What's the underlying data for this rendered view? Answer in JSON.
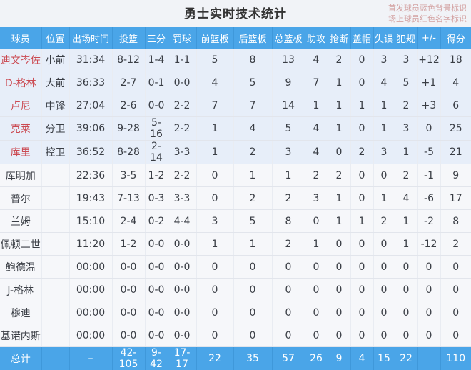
{
  "page": {
    "title": "勇士实时技术统计",
    "note_line1": "首发球员蓝色背景标识",
    "note_line2": "场上球员红色名字标识"
  },
  "colors": {
    "header_bg": "#4aa5e8",
    "total_bg": "#4aa5e8",
    "starter_row_bg": "#e7eef9",
    "bench_row_bg": "#f6f7fa",
    "on_court_name": "#cb4a52",
    "note_text": "#d4a3a3"
  },
  "table": {
    "columns": [
      "球员",
      "位置",
      "出场时间",
      "投篮",
      "三分",
      "罚球",
      "前篮板",
      "后篮板",
      "总篮板",
      "助攻",
      "抢断",
      "盖帽",
      "失误",
      "犯规",
      "+/-",
      "得分"
    ],
    "rows": [
      {
        "name": "迪文岑佐",
        "starter": true,
        "on_court": true,
        "cells": [
          "小前",
          "31:34",
          "8-12",
          "1-4",
          "1-1",
          "5",
          "8",
          "13",
          "4",
          "2",
          "0",
          "3",
          "3",
          "+12",
          "18"
        ]
      },
      {
        "name": "D-格林",
        "starter": true,
        "on_court": true,
        "cells": [
          "大前",
          "36:33",
          "2-7",
          "0-1",
          "0-0",
          "4",
          "5",
          "9",
          "7",
          "1",
          "0",
          "4",
          "5",
          "+1",
          "4"
        ]
      },
      {
        "name": "卢尼",
        "starter": true,
        "on_court": true,
        "cells": [
          "中锋",
          "27:04",
          "2-6",
          "0-0",
          "2-2",
          "7",
          "7",
          "14",
          "1",
          "1",
          "1",
          "1",
          "2",
          "+3",
          "6"
        ]
      },
      {
        "name": "克莱",
        "starter": true,
        "on_court": true,
        "cells": [
          "分卫",
          "39:06",
          "9-28",
          "5-16",
          "2-2",
          "1",
          "4",
          "5",
          "4",
          "1",
          "0",
          "1",
          "3",
          "0",
          "25"
        ]
      },
      {
        "name": "库里",
        "starter": true,
        "on_court": true,
        "cells": [
          "控卫",
          "36:52",
          "8-28",
          "2-14",
          "3-3",
          "1",
          "2",
          "3",
          "4",
          "0",
          "2",
          "3",
          "1",
          "-5",
          "21"
        ]
      },
      {
        "name": "库明加",
        "starter": false,
        "on_court": false,
        "cells": [
          "",
          "22:36",
          "3-5",
          "1-2",
          "2-2",
          "0",
          "1",
          "1",
          "2",
          "2",
          "0",
          "0",
          "2",
          "-1",
          "9"
        ]
      },
      {
        "name": "普尔",
        "starter": false,
        "on_court": false,
        "cells": [
          "",
          "19:43",
          "7-13",
          "0-3",
          "3-3",
          "0",
          "2",
          "2",
          "3",
          "1",
          "0",
          "1",
          "4",
          "-6",
          "17"
        ]
      },
      {
        "name": "兰姆",
        "starter": false,
        "on_court": false,
        "cells": [
          "",
          "15:10",
          "2-4",
          "0-2",
          "4-4",
          "3",
          "5",
          "8",
          "0",
          "1",
          "1",
          "2",
          "1",
          "-2",
          "8"
        ]
      },
      {
        "name": "佩顿二世",
        "starter": false,
        "on_court": false,
        "cells": [
          "",
          "11:20",
          "1-2",
          "0-0",
          "0-0",
          "1",
          "1",
          "2",
          "1",
          "0",
          "0",
          "0",
          "1",
          "-12",
          "2"
        ]
      },
      {
        "name": "鲍德温",
        "starter": false,
        "on_court": false,
        "cells": [
          "",
          "00:00",
          "0-0",
          "0-0",
          "0-0",
          "0",
          "0",
          "0",
          "0",
          "0",
          "0",
          "0",
          "0",
          "0",
          "0"
        ]
      },
      {
        "name": "J-格林",
        "starter": false,
        "on_court": false,
        "cells": [
          "",
          "00:00",
          "0-0",
          "0-0",
          "0-0",
          "0",
          "0",
          "0",
          "0",
          "0",
          "0",
          "0",
          "0",
          "0",
          "0"
        ]
      },
      {
        "name": "穆迪",
        "starter": false,
        "on_court": false,
        "cells": [
          "",
          "00:00",
          "0-0",
          "0-0",
          "0-0",
          "0",
          "0",
          "0",
          "0",
          "0",
          "0",
          "0",
          "0",
          "0",
          "0"
        ]
      },
      {
        "name": "基诺内斯",
        "starter": false,
        "on_court": false,
        "cells": [
          "",
          "00:00",
          "0-0",
          "0-0",
          "0-0",
          "0",
          "0",
          "0",
          "0",
          "0",
          "0",
          "0",
          "0",
          "0",
          "0"
        ]
      }
    ],
    "total": {
      "name": "总计",
      "cells": [
        "",
        "–",
        "42-105",
        "9-42",
        "17-17",
        "22",
        "35",
        "57",
        "26",
        "9",
        "4",
        "15",
        "22",
        "",
        "110"
      ]
    }
  }
}
